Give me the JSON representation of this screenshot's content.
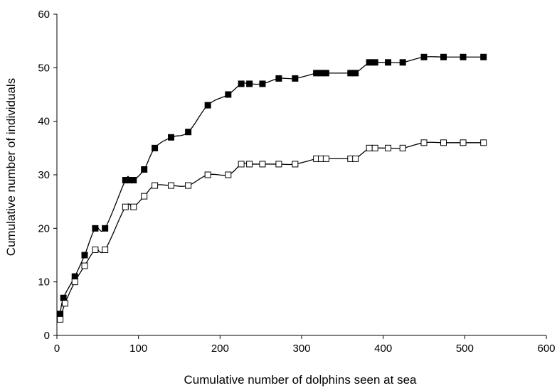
{
  "chart_data": {
    "type": "line",
    "title": "",
    "xlabel": "Cumulative number of dolphins seen at sea",
    "ylabel": "Cumulative number of individuals",
    "xlim": [
      0,
      600
    ],
    "ylim": [
      0,
      60
    ],
    "xticks": [
      0,
      100,
      200,
      300,
      400,
      500,
      600
    ],
    "yticks": [
      0,
      10,
      20,
      30,
      40,
      50,
      60
    ],
    "xtick_labels": [
      "0",
      "100",
      "200",
      "300",
      "400",
      "500",
      "600"
    ],
    "ytick_labels": [
      "0",
      "10",
      "20",
      "30",
      "40",
      "50",
      "60"
    ],
    "grid": false,
    "legend": "none",
    "series": [
      {
        "marker": "filled-square",
        "color": "#000000",
        "x": [
          4,
          8,
          22,
          34,
          47,
          59,
          84,
          89,
          94,
          107,
          120,
          140,
          161,
          185,
          210,
          226,
          236,
          252,
          272,
          292,
          318,
          324,
          330,
          360,
          366,
          383,
          390,
          406,
          424,
          450,
          474,
          498,
          523
        ],
        "y": [
          4,
          7,
          11,
          15,
          20,
          20,
          29,
          29,
          29,
          31,
          35,
          37,
          38,
          43,
          45,
          47,
          47,
          47,
          48,
          48,
          49,
          49,
          49,
          49,
          49,
          51,
          51,
          51,
          51,
          52,
          52,
          52,
          52
        ]
      },
      {
        "marker": "open-square",
        "color": "#000000",
        "x": [
          4,
          10,
          22,
          34,
          47,
          59,
          84,
          94,
          107,
          120,
          140,
          161,
          185,
          210,
          226,
          236,
          252,
          272,
          292,
          318,
          324,
          330,
          360,
          366,
          383,
          390,
          406,
          424,
          450,
          474,
          498,
          523
        ],
        "y": [
          3,
          6,
          10,
          13,
          16,
          16,
          24,
          24,
          26,
          28,
          28,
          28,
          30,
          30,
          32,
          32,
          32,
          32,
          32,
          33,
          33,
          33,
          33,
          33,
          35,
          35,
          35,
          35,
          36,
          36,
          36,
          36
        ]
      }
    ]
  }
}
